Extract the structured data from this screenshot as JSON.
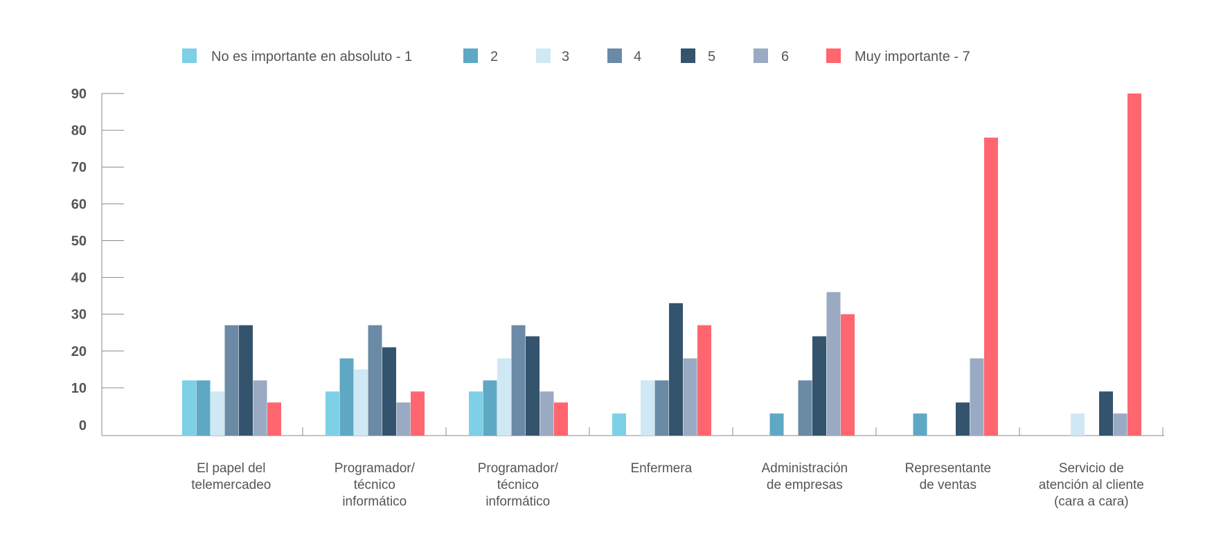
{
  "chart_data": {
    "type": "bar",
    "categories": [
      [
        "El papel del",
        "telemercadeo"
      ],
      [
        "Programador/",
        "técnico",
        "informático"
      ],
      [
        "Programador/",
        "técnico",
        "informático"
      ],
      [
        "Enfermera"
      ],
      [
        "Administración",
        "de empresas"
      ],
      [
        "Representante",
        "de ventas"
      ],
      [
        "Servicio de",
        "atención al cliente",
        "(cara a cara)"
      ]
    ],
    "series": [
      {
        "name": "No es importante en absoluto - 1",
        "color": "#7dd0e6",
        "values": [
          12,
          9,
          9,
          3,
          0,
          0,
          0
        ]
      },
      {
        "name": "2",
        "color": "#5ea8c4",
        "values": [
          12,
          18,
          12,
          0,
          3,
          3,
          0
        ]
      },
      {
        "name": "3",
        "color": "#cfe8f4",
        "values": [
          9,
          15,
          18,
          12,
          0,
          0,
          3
        ]
      },
      {
        "name": "4",
        "color": "#6a8aa6",
        "values": [
          27,
          27,
          27,
          12,
          12,
          0,
          0
        ]
      },
      {
        "name": "5",
        "color": "#34536d",
        "values": [
          27,
          21,
          24,
          33,
          24,
          6,
          9
        ]
      },
      {
        "name": "6",
        "color": "#9aaac2",
        "values": [
          12,
          6,
          9,
          18,
          36,
          18,
          3
        ]
      },
      {
        "name": "Muy importante - 7",
        "color": "#ff6670",
        "values": [
          6,
          9,
          6,
          27,
          30,
          78,
          90
        ]
      }
    ],
    "y_ticks": [
      0,
      10,
      20,
      30,
      40,
      50,
      60,
      70,
      80,
      90
    ],
    "ylim": [
      -3,
      90
    ],
    "legend_position": "top",
    "grid": false
  }
}
